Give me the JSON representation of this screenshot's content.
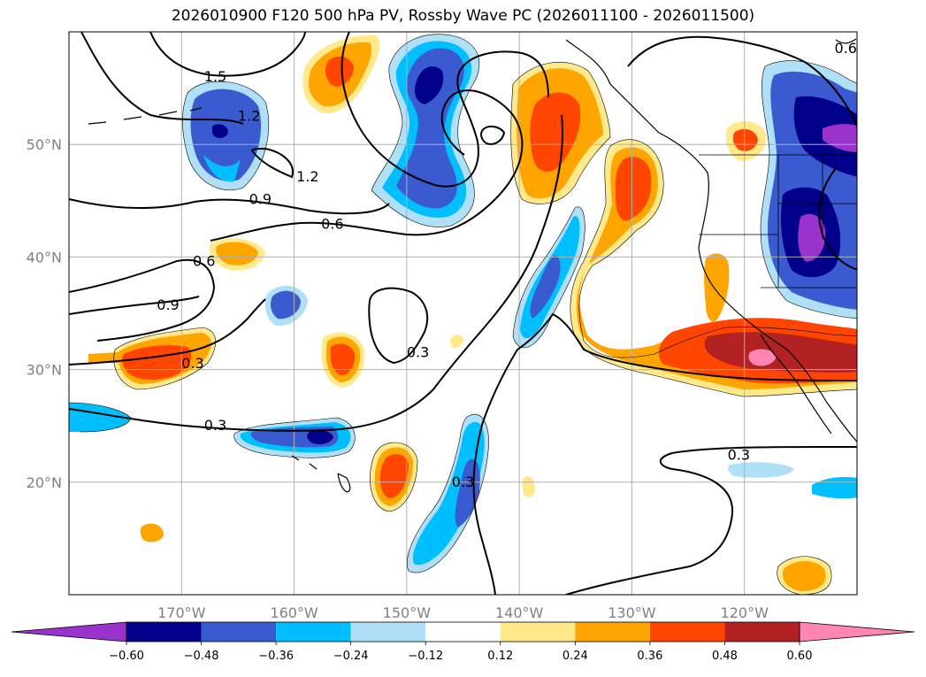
{
  "title": "2026010900 F120 500 hPa PV, Rossby Wave PC (2026011100 - 2026011500)",
  "map": {
    "projection": "lat-lon",
    "lon_range": [
      -180,
      -110
    ],
    "lat_range": [
      10,
      60
    ],
    "lat_ticks": [
      {
        "lat": 50,
        "label": "50°N"
      },
      {
        "lat": 40,
        "label": "40°N"
      },
      {
        "lat": 30,
        "label": "30°N"
      },
      {
        "lat": 20,
        "label": "20°N"
      }
    ],
    "lon_ticks": [
      {
        "lon": -170,
        "label": "170°W"
      },
      {
        "lon": -160,
        "label": "160°W"
      },
      {
        "lon": -150,
        "label": "150°W"
      },
      {
        "lon": -140,
        "label": "140°W"
      },
      {
        "lon": -130,
        "label": "130°W"
      },
      {
        "lon": -120,
        "label": "120°W"
      }
    ],
    "grid": true,
    "contour_labels": [
      {
        "text": "1.5",
        "lon": -167.0,
        "lat": 56.0
      },
      {
        "text": "1.2",
        "lon": -164.0,
        "lat": 52.5
      },
      {
        "text": "1.2",
        "lon": -158.8,
        "lat": 47.1
      },
      {
        "text": "0.9",
        "lon": -163.0,
        "lat": 45.1
      },
      {
        "text": "0.6",
        "lon": -156.6,
        "lat": 42.9
      },
      {
        "text": "0.6",
        "lon": -168.0,
        "lat": 39.6
      },
      {
        "text": "0.9",
        "lon": -171.2,
        "lat": 35.7
      },
      {
        "text": "0.3",
        "lon": -169.0,
        "lat": 30.5
      },
      {
        "text": "0.3",
        "lon": -167.0,
        "lat": 25.0
      },
      {
        "text": "0.3",
        "lon": -149.0,
        "lat": 31.5
      },
      {
        "text": "0.3",
        "lon": -145.0,
        "lat": 20.0
      },
      {
        "text": "0.3",
        "lon": -120.5,
        "lat": 22.4
      },
      {
        "text": "0.6",
        "lon": -111.0,
        "lat": 58.5
      }
    ]
  },
  "colorbar": {
    "ticks": [
      "−0.60",
      "−0.48",
      "−0.36",
      "−0.24",
      "−0.12",
      "0.12",
      "0.24",
      "0.36",
      "0.48",
      "0.60"
    ],
    "colors": {
      "below": "#9933cc",
      "bins": [
        "#00008b",
        "#3a5bd0",
        "#00bfff",
        "#b0e0f8",
        "#ffffff",
        "#ffe98a",
        "#ffa500",
        "#ff4500",
        "#b22222"
      ],
      "above": "#ff85b3"
    }
  },
  "colors": {
    "coast": "#000000",
    "contour": "#000000",
    "grid": "#b0b0b0"
  }
}
